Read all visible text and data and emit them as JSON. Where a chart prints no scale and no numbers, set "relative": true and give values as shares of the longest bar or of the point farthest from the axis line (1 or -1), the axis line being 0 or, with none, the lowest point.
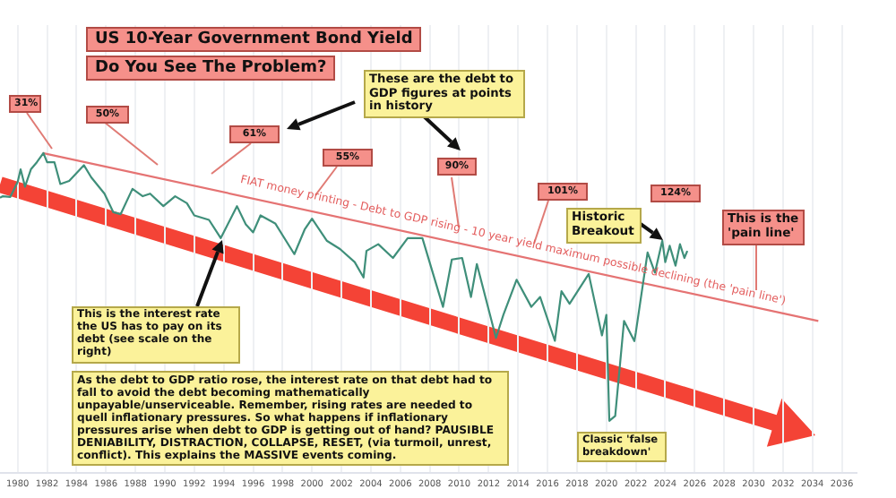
{
  "chart_data": {
    "type": "line",
    "title": "US 10-Year Government Bond Yield",
    "subtitle": "Do You See The Problem?",
    "relative": true,
    "grid": "x",
    "legend": false,
    "marker": "none",
    "xlim": [
      1978.8,
      2037
    ],
    "xticks": [
      1980,
      1982,
      1984,
      1986,
      1988,
      1990,
      1992,
      1994,
      1996,
      1998,
      2000,
      2002,
      2004,
      2006,
      2008,
      2010,
      2012,
      2014,
      2016,
      2018,
      2020,
      2022,
      2024,
      2026,
      2028,
      2030,
      2032,
      2034,
      2036
    ],
    "series": [
      {
        "color": "#3f8f7a",
        "x": [
          1978.8,
          1979.0,
          1979.5,
          1980.0,
          1980.2,
          1980.5,
          1980.9,
          1981.3,
          1981.75,
          1982.0,
          1982.5,
          1982.9,
          1983.5,
          1984.5,
          1985.0,
          1985.9,
          1986.5,
          1987.0,
          1987.8,
          1988.5,
          1989.0,
          1989.9,
          1990.7,
          1991.5,
          1992.0,
          1993.0,
          1993.8,
          1994.9,
          1995.5,
          1996.0,
          1996.5,
          1997.5,
          1998.8,
          1999.5,
          2000.0,
          2001.0,
          2001.9,
          2002.9,
          2003.5,
          2003.7,
          2004.5,
          2005.5,
          2006.5,
          2007.5,
          2008.9,
          2009.5,
          2010.2,
          2010.8,
          2011.2,
          2012.5,
          2013.0,
          2013.9,
          2014.9,
          2015.5,
          2016.5,
          2016.95,
          2017.5,
          2018.8,
          2019.7,
          2020.0,
          2020.2,
          2020.6,
          2021.2,
          2021.9,
          2022.0,
          2022.8,
          2023.3,
          2023.8,
          2024.0,
          2024.3,
          2024.7,
          2025.0,
          2025.3,
          2025.5
        ],
        "values": [
          0.86,
          0.865,
          0.863,
          0.909,
          0.949,
          0.895,
          0.949,
          0.971,
          1,
          0.971,
          0.971,
          0.903,
          0.913,
          0.962,
          0.924,
          0.873,
          0.815,
          0.809,
          0.888,
          0.865,
          0.873,
          0.834,
          0.865,
          0.843,
          0.805,
          0.791,
          0.734,
          0.834,
          0.777,
          0.752,
          0.805,
          0.78,
          0.684,
          0.761,
          0.795,
          0.726,
          0.7,
          0.659,
          0.611,
          0.694,
          0.715,
          0.672,
          0.734,
          0.734,
          0.519,
          0.667,
          0.672,
          0.55,
          0.653,
          0.422,
          0.494,
          0.604,
          0.519,
          0.55,
          0.413,
          0.568,
          0.529,
          0.622,
          0.43,
          0.494,
          0.163,
          0.178,
          0.475,
          0.412,
          0.439,
          0.689,
          0.626,
          0.726,
          0.659,
          0.71,
          0.648,
          0.715,
          0.672,
          0.694
        ]
      },
      {
        "color": "#e57373",
        "x": [
          1981.7,
          2034.4
        ],
        "values": [
          1,
          0.475
        ]
      }
    ],
    "annotations": [
      "These are the debt to GDP figures at points in history",
      "31%",
      "50%",
      "61%",
      "55%",
      "90%",
      "101%",
      "124%",
      "Historic Breakout",
      "This is the 'pain line'",
      "FIAT money printing - Debt to GDP rising - 10 year yield maximum possible declining (the 'pain line')",
      "This is the interest rate the US has to pay on its debt (see scale on the right)",
      "As the debt to GDP ratio rose, the interest rate on that debt had to fall to avoid the debt becoming mathematically unpayable/unserviceable. Remember, rising rates are needed to quell inflationary pressures. So what happens if inflationary pressures arise when debt to GDP is getting out of hand? PAUSIBLE DENIABILITY, DISTRACTION, COLLAPSE, RESET, (via turmoil, unrest, conflict). This explains the MASSIVE events coming.",
      "Classic 'false breakdown'"
    ]
  }
}
